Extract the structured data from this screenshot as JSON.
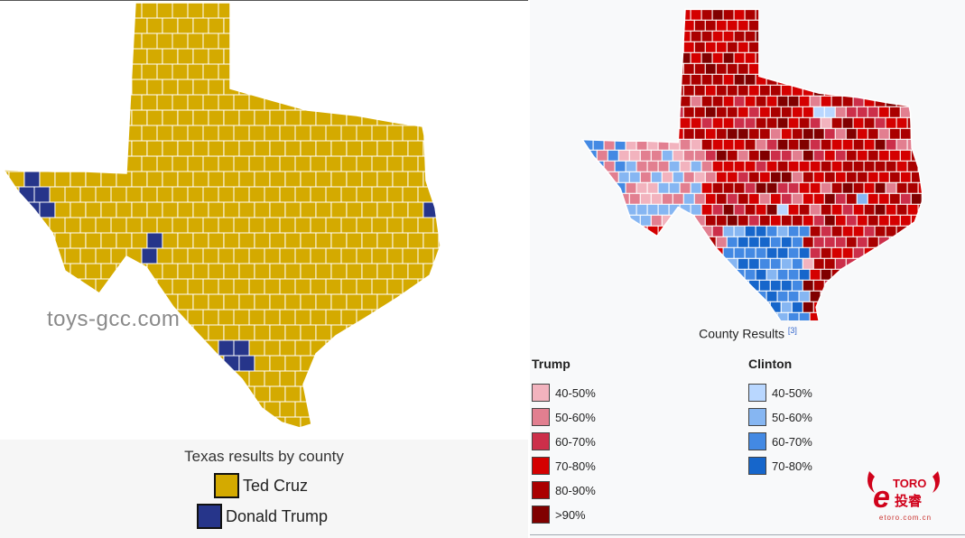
{
  "left_map": {
    "watermark": "toys-gcc.com",
    "legend_title": "Texas results by county",
    "legend": [
      {
        "label": "Ted Cruz",
        "color": "#d4aa00"
      },
      {
        "label": "Donald Trump",
        "color": "#26358a"
      }
    ],
    "border_color": "#ffffff"
  },
  "right_map": {
    "caption": "County Results",
    "caption_ref": "[3]",
    "groups": [
      {
        "name": "Trump",
        "items": [
          {
            "label": "40-50%",
            "color": "#f2b3be"
          },
          {
            "label": "50-60%",
            "color": "#e27f90"
          },
          {
            "label": "60-70%",
            "color": "#cc2f4a"
          },
          {
            "label": "70-80%",
            "color": "#d40000"
          },
          {
            "label": "80-90%",
            "color": "#aa0000"
          },
          {
            "label": ">90%",
            "color": "#800000"
          }
        ]
      },
      {
        "name": "Clinton",
        "items": [
          {
            "label": "40-50%",
            "color": "#b9d7ff"
          },
          {
            "label": "50-60%",
            "color": "#86b6f2"
          },
          {
            "label": "60-70%",
            "color": "#4389e3"
          },
          {
            "label": "70-80%",
            "color": "#1666cb"
          }
        ]
      }
    ]
  },
  "logo": {
    "text": "eTORO",
    "sub": "投睿",
    "url": "etoro.com.cn",
    "color": "#d0021b"
  }
}
